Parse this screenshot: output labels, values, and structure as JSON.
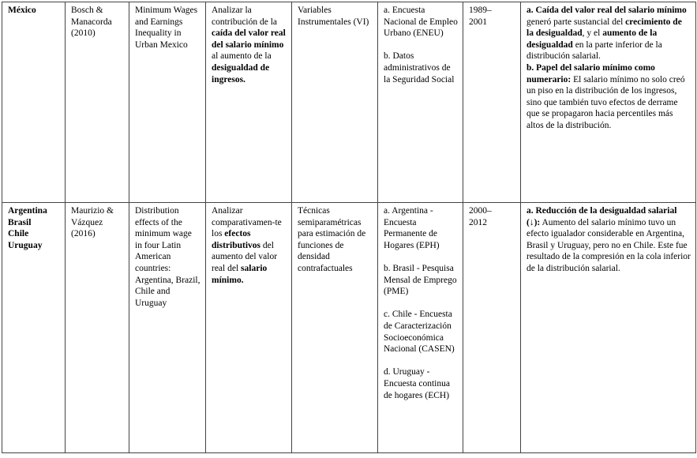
{
  "table": {
    "border_color": "#444444",
    "text_color": "#000000",
    "rows": [
      {
        "country": [
          {
            "t": "México",
            "b": true
          }
        ],
        "authors": [
          {
            "t": "Bosch & Manacorda (2010)",
            "b": false
          }
        ],
        "title": [
          {
            "t": "Minimum Wages and Earnings Inequality in Urban Mexico",
            "b": false
          }
        ],
        "objective": [
          {
            "t": "Analizar la contribución de la ",
            "b": false
          },
          {
            "t": "caída del valor real del salario mínimo",
            "b": true
          },
          {
            "t": " al aumento de la ",
            "b": false
          },
          {
            "t": "desigualdad de ingresos.",
            "b": true
          }
        ],
        "method": [
          {
            "t": "Variables Instrumentales (VI)",
            "b": false
          }
        ],
        "data_sources": [
          {
            "t": "a. Encuesta Nacional de Empleo Urbano (ENEU)\n\nb. Datos administrativos de la Seguridad Social",
            "b": false
          }
        ],
        "period": [
          {
            "t": "1989–\n2001",
            "b": false
          }
        ],
        "findings": [
          {
            "t": "a. Caída del valor real del salario mínimo",
            "b": true
          },
          {
            "t": " generó parte sustancial del ",
            "b": false
          },
          {
            "t": "crecimiento de la desigualdad",
            "b": true
          },
          {
            "t": ", y el ",
            "b": false
          },
          {
            "t": "aumento de la desigualdad",
            "b": true
          },
          {
            "t": " en la parte inferior de la distribución salarial.\n",
            "b": false
          },
          {
            "t": "b. Papel del salario mínimo como numerario:",
            "b": true
          },
          {
            "t": " El salario mínimo no solo creó un piso en la distribución de los ingresos, sino que también tuvo efectos de derrame que se propagaron hacia percentiles más altos de la distribución.",
            "b": false
          }
        ]
      },
      {
        "country": [
          {
            "t": "Argentina\nBrasil\nChile\nUruguay",
            "b": true
          }
        ],
        "authors": [
          {
            "t": "Maurizio & Vázquez (2016)",
            "b": false
          }
        ],
        "title": [
          {
            "t": "Distribution effects of the minimum wage in four Latin American countries: Argentina, Brazil, Chile and Uruguay",
            "b": false
          }
        ],
        "objective": [
          {
            "t": "Analizar comparativamen-te los ",
            "b": false
          },
          {
            "t": "efectos distributivos",
            "b": true
          },
          {
            "t": " del aumento del valor real del ",
            "b": false
          },
          {
            "t": "salario mínimo.",
            "b": true
          }
        ],
        "method": [
          {
            "t": "Técnicas semiparamétricas para estimación de funciones de densidad contrafactuales",
            "b": false
          }
        ],
        "data_sources": [
          {
            "t": "a. Argentina - Encuesta Permanente de Hogares (EPH)\n\nb. Brasil - Pesquisa Mensal de Emprego (PME)\n\nc. Chile - Encuesta de Caracterización Socioeconómica Nacional (CASEN)\n\nd. Uruguay - Encuesta continua de hogares (ECH)",
            "b": false
          }
        ],
        "period": [
          {
            "t": "2000–\n2012",
            "b": false
          }
        ],
        "findings": [
          {
            "t": "a. Reducción de la desigualdad salarial (↓):",
            "b": true
          },
          {
            "t": " Aumento del salario mínimo tuvo un efecto igualador considerable en Argentina, Brasil y Uruguay, pero no en Chile. Este fue resultado de la compresión en la cola inferior de la distribución salarial.",
            "b": false
          }
        ]
      }
    ]
  }
}
